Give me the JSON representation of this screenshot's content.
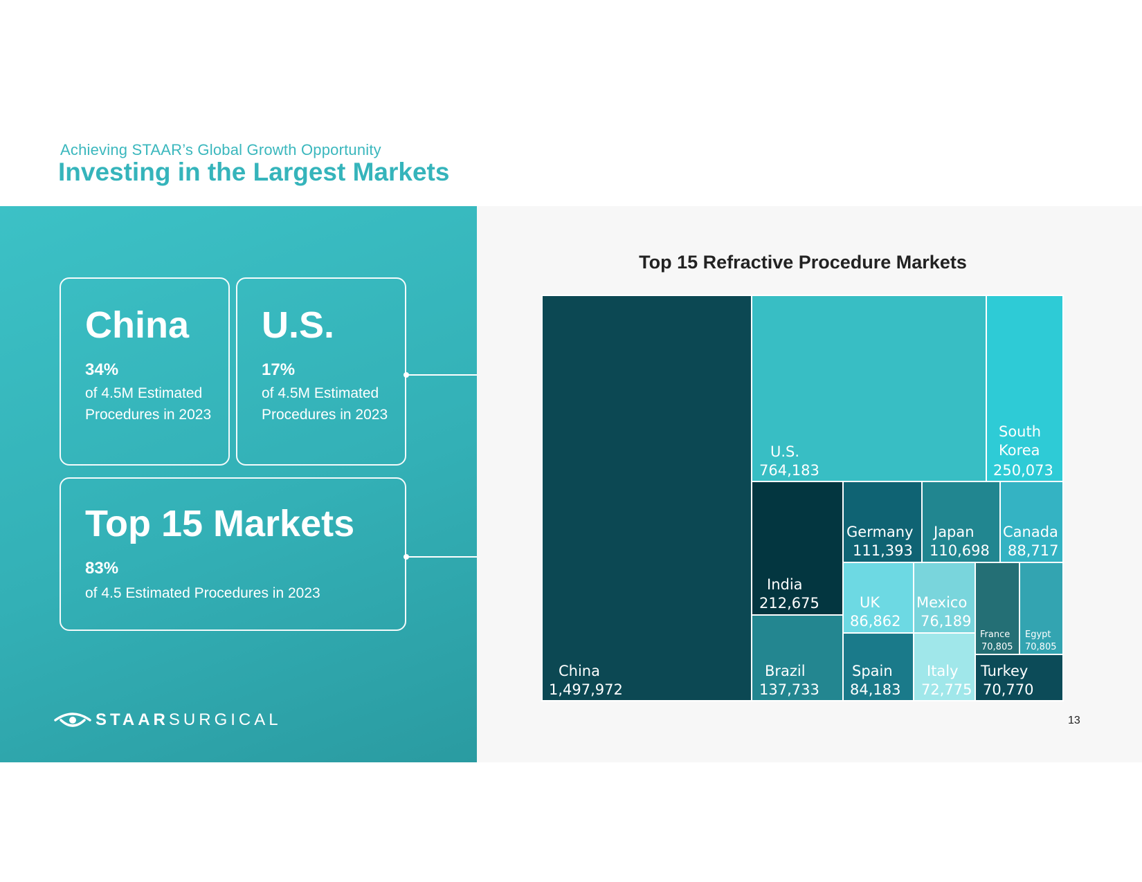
{
  "header": {
    "eyebrow": "Achieving STAAR’s Global Growth Opportunity",
    "title": "Investing in the Largest Markets"
  },
  "cards": {
    "china": {
      "name": "China",
      "pct": "34%",
      "desc": "of 4.5M Estimated Procedures in 2023"
    },
    "us": {
      "name": "U.S.",
      "pct": "17%",
      "desc": "of 4.5M Estimated Procedures in 2023"
    },
    "top15": {
      "name": "Top 15 Markets",
      "pct": "83%",
      "desc": "of 4.5 Estimated Procedures in 2023"
    }
  },
  "logo": {
    "bold": "STAAR",
    "light": "SURGICAL"
  },
  "page_number": "13",
  "chart_data": {
    "type": "treemap",
    "title": "Top 15 Refractive Procedure Markets",
    "items": [
      {
        "label": "China",
        "value": 1497972,
        "display": "1,497,972",
        "color": "#0c4853"
      },
      {
        "label": "U.S.",
        "value": 764183,
        "display": "764,183",
        "color": "#38bec4"
      },
      {
        "label": "South Korea",
        "value": 250073,
        "display": "250,073",
        "color": "#2ecbd6"
      },
      {
        "label": "India",
        "value": 212675,
        "display": "212,675",
        "color": "#033640"
      },
      {
        "label": "Germany",
        "value": 111393,
        "display": "111,393",
        "color": "#0f6373"
      },
      {
        "label": "Japan",
        "value": 110698,
        "display": "110,698",
        "color": "#218690"
      },
      {
        "label": "Canada",
        "value": 88717,
        "display": "88,717",
        "color": "#34b3c3"
      },
      {
        "label": "UK",
        "value": 86862,
        "display": "86,862",
        "color": "#6dd9e3"
      },
      {
        "label": "Mexico",
        "value": 76189,
        "display": "76,189",
        "color": "#79d5dc"
      },
      {
        "label": "France",
        "value": 70805,
        "display": "70,805",
        "color": "#246f75"
      },
      {
        "label": "Egypt",
        "value": 70805,
        "display": "70,805",
        "color": "#33a4b1"
      },
      {
        "label": "Brazil",
        "value": 137733,
        "display": "137,733",
        "color": "#238690"
      },
      {
        "label": "Spain",
        "value": 84183,
        "display": "84,183",
        "color": "#1a7a8a"
      },
      {
        "label": "Italy",
        "value": 72775,
        "display": "72,775",
        "color": "#a0e7ea"
      },
      {
        "label": "Turkey",
        "value": 70770,
        "display": "70,770",
        "color": "#0c4b58"
      }
    ]
  }
}
